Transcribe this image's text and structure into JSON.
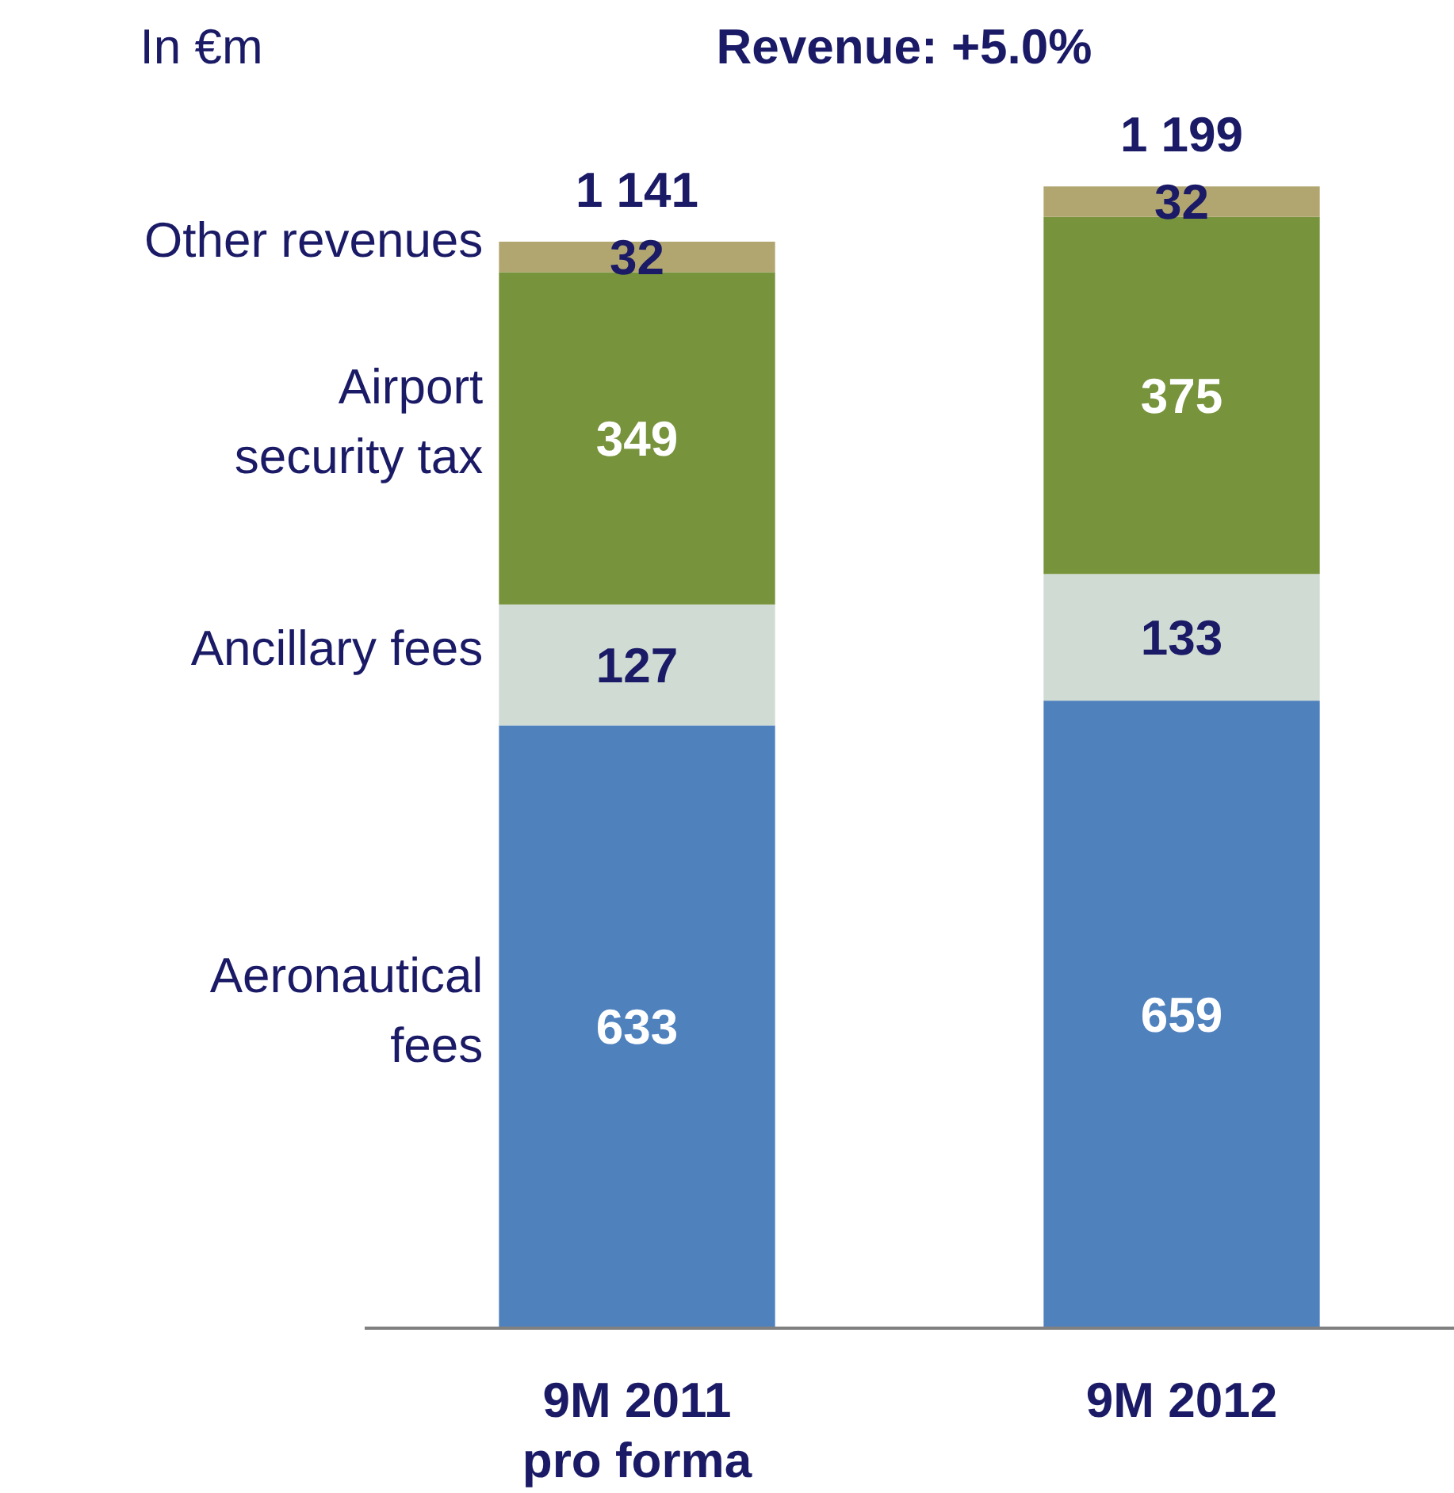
{
  "chart_data": {
    "type": "bar",
    "title": "Revenue: +5.0%",
    "ylabel": "In €m",
    "stacked": true,
    "data_labels": true,
    "legend": "left",
    "categories": [
      "9M 2011 pro forma",
      "9M 2012"
    ],
    "series": [
      {
        "name": "Aeronautical fees",
        "color": "#4f81bd",
        "values": [
          633,
          659
        ]
      },
      {
        "name": "Ancillary fees",
        "color": "#d0dbd3",
        "values": [
          127,
          133
        ]
      },
      {
        "name": "Airport security tax",
        "color": "#77933c",
        "values": [
          349,
          375
        ]
      },
      {
        "name": "Other revenues",
        "color": "#b2a670",
        "values": [
          32,
          32
        ]
      }
    ],
    "totals": [
      "1 141",
      "1 199"
    ]
  }
}
